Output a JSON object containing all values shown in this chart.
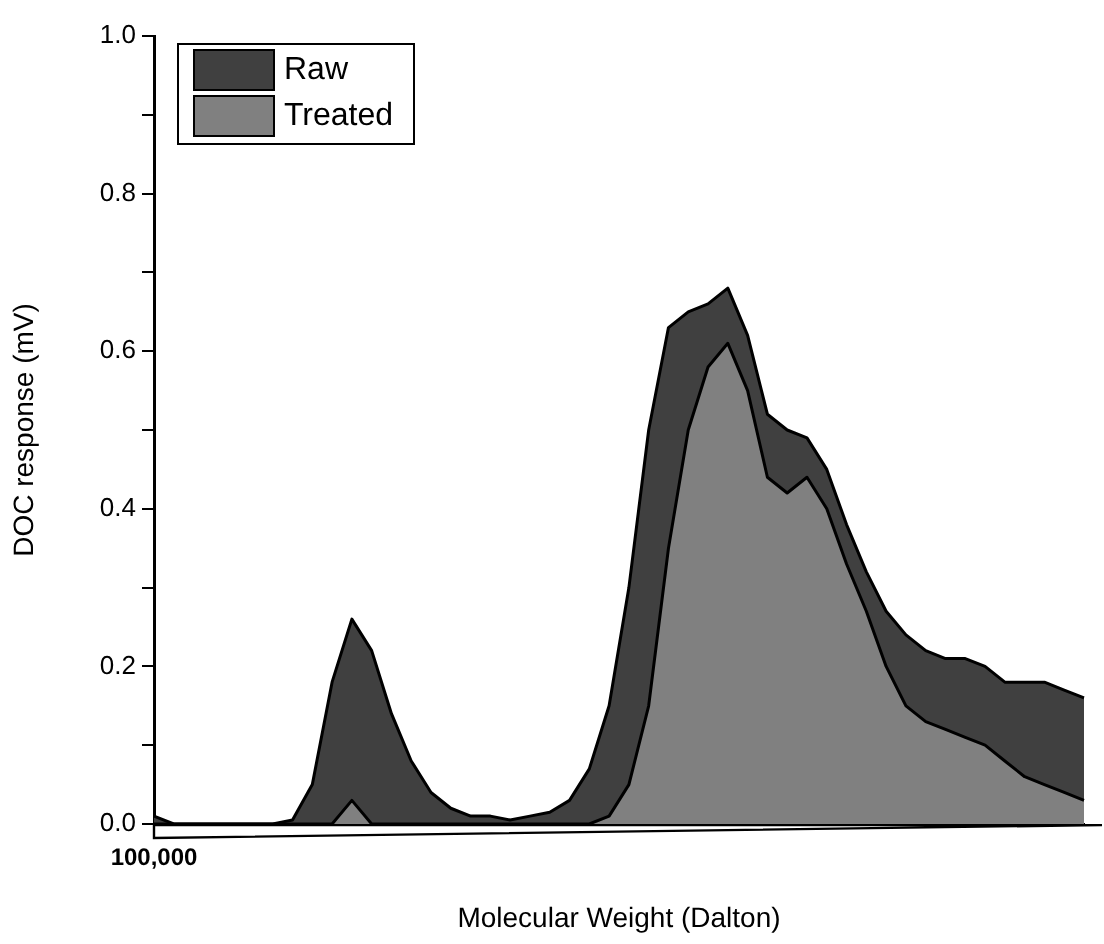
{
  "chart_data": {
    "type": "area",
    "xlabel": "Molecular Weight (Dalton)",
    "ylabel": "DOC response (mV)",
    "categories": [
      "100,000",
      null,
      null,
      null,
      null,
      null,
      null,
      null,
      null,
      null,
      null,
      null,
      null,
      null,
      null,
      null,
      null,
      null,
      null,
      null,
      null,
      null,
      null,
      null,
      null,
      null,
      null,
      null,
      null,
      null,
      null,
      null,
      null,
      null,
      null,
      null,
      null,
      null,
      null,
      null,
      null,
      null,
      null,
      null,
      null,
      null,
      null,
      null
    ],
    "series": [
      {
        "name": "Raw",
        "color": "#404040",
        "values": [
          0.01,
          0,
          0,
          0,
          0,
          0,
          0,
          0.005,
          0.05,
          0.18,
          0.26,
          0.22,
          0.14,
          0.08,
          0.04,
          0.02,
          0.01,
          0.01,
          0.005,
          0.01,
          0.015,
          0.03,
          0.07,
          0.15,
          0.3,
          0.5,
          0.63,
          0.65,
          0.66,
          0.68,
          0.62,
          0.52,
          0.5,
          0.49,
          0.45,
          0.38,
          0.32,
          0.27,
          0.24,
          0.22,
          0.21,
          0.21,
          0.2,
          0.18,
          0.18,
          0.18,
          0.17,
          0.16
        ]
      },
      {
        "name": "Treated",
        "color": "#808080",
        "values": [
          0,
          0,
          0,
          0,
          0,
          0,
          0,
          0,
          0,
          0,
          0.03,
          0,
          0,
          0,
          0,
          0,
          0,
          0,
          0,
          0,
          0,
          0,
          0,
          0.01,
          0.05,
          0.15,
          0.35,
          0.5,
          0.58,
          0.61,
          0.55,
          0.44,
          0.42,
          0.44,
          0.4,
          0.33,
          0.27,
          0.2,
          0.15,
          0.13,
          0.12,
          0.11,
          0.1,
          0.08,
          0.06,
          0.05,
          0.04,
          0.03
        ]
      }
    ],
    "ylim": [
      0,
      1
    ],
    "yticks": [
      {
        "value": 0,
        "label": "0.0"
      },
      {
        "value": 0.1,
        "label": null
      },
      {
        "value": 0.2,
        "label": "0.2"
      },
      {
        "value": 0.3,
        "label": null
      },
      {
        "value": 0.4,
        "label": "0.4"
      },
      {
        "value": 0.5,
        "label": null
      },
      {
        "value": 0.6,
        "label": "0.6"
      },
      {
        "value": 0.7,
        "label": null
      },
      {
        "value": 0.8,
        "label": "0.8"
      },
      {
        "value": 0.9,
        "label": null
      },
      {
        "value": 1,
        "label": "1.0"
      }
    ],
    "grid": false,
    "legend": "top left",
    "marker": "none",
    "line_style": "solid"
  }
}
